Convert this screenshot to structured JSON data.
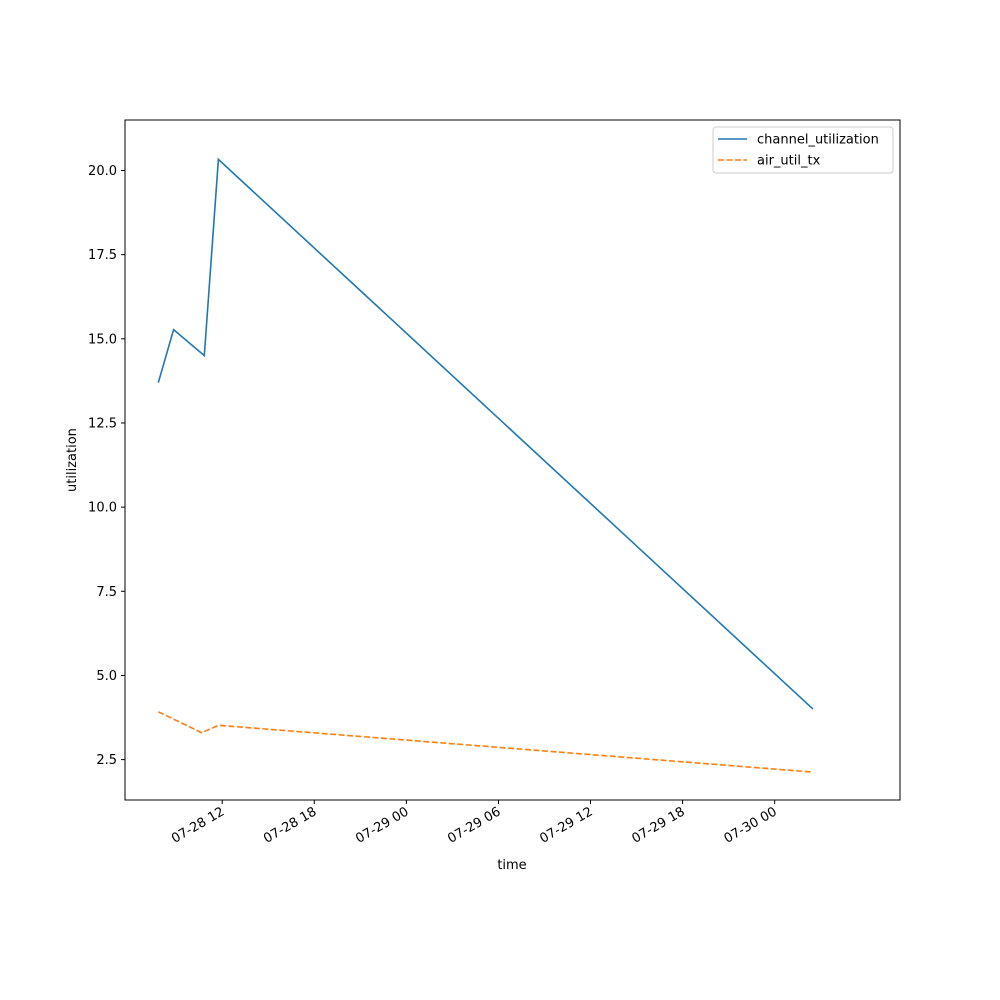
{
  "chart_data": {
    "type": "line",
    "title": "",
    "xlabel": "time",
    "ylabel": "utilization",
    "xlim": [
      "2025-07-28 05:40",
      "2025-07-30 08:10"
    ],
    "ylim": [
      1.3,
      21.5
    ],
    "x_ticks": [
      {
        "value": "2025-07-28 12:00",
        "label": "07-28 12"
      },
      {
        "value": "2025-07-28 18:00",
        "label": "07-28 18"
      },
      {
        "value": "2025-07-29 00:00",
        "label": "07-29 00"
      },
      {
        "value": "2025-07-29 06:00",
        "label": "07-29 06"
      },
      {
        "value": "2025-07-29 12:00",
        "label": "07-29 12"
      },
      {
        "value": "2025-07-29 18:00",
        "label": "07-29 18"
      },
      {
        "value": "2025-07-30 00:00",
        "label": "07-30 00"
      }
    ],
    "y_ticks": [
      {
        "value": 2.5,
        "label": "2.5"
      },
      {
        "value": 5.0,
        "label": "5.0"
      },
      {
        "value": 7.5,
        "label": "7.5"
      },
      {
        "value": 10.0,
        "label": "10.0"
      },
      {
        "value": 12.5,
        "label": "12.5"
      },
      {
        "value": 15.0,
        "label": "15.0"
      },
      {
        "value": 17.5,
        "label": "17.5"
      },
      {
        "value": 20.0,
        "label": "20.0"
      }
    ],
    "grid": false,
    "legend_position": "top-right",
    "series": [
      {
        "name": "channel_utilization",
        "color": "#1f77b4",
        "style": "solid",
        "points": [
          {
            "x": "2025-07-28 07:50",
            "y": 13.7
          },
          {
            "x": "2025-07-28 08:50",
            "y": 15.27
          },
          {
            "x": "2025-07-28 10:50",
            "y": 14.5
          },
          {
            "x": "2025-07-28 11:45",
            "y": 20.33
          },
          {
            "x": "2025-07-30 02:30",
            "y": 4.0
          }
        ]
      },
      {
        "name": "air_util_tx",
        "color": "#ff7f0e",
        "style": "dashed",
        "points": [
          {
            "x": "2025-07-28 07:50",
            "y": 3.92
          },
          {
            "x": "2025-07-28 10:40",
            "y": 3.3
          },
          {
            "x": "2025-07-28 11:45",
            "y": 3.52
          },
          {
            "x": "2025-07-30 02:30",
            "y": 2.13
          }
        ]
      }
    ]
  }
}
